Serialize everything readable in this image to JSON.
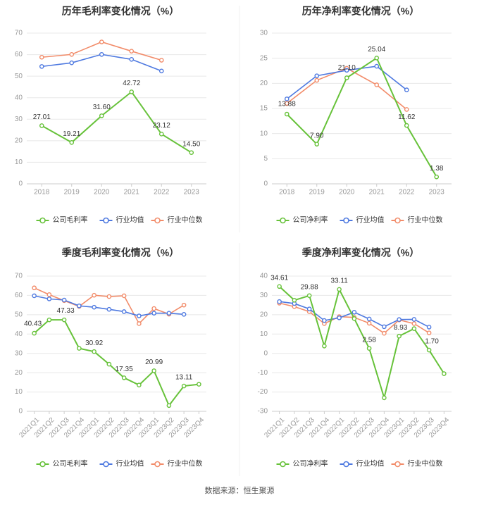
{
  "colors": {
    "company": "#67c23a",
    "industry_avg": "#4e79e0",
    "industry_median": "#f28c6a",
    "grid": "#e8e8e8",
    "axis_text": "#999999",
    "label_text": "#333333"
  },
  "legend": {
    "company_gross": "公司毛利率",
    "company_net": "公司净利率",
    "industry_avg": "行业均值",
    "industry_median": "行业中位数"
  },
  "footer": {
    "source": "数据来源：恒生聚源"
  },
  "chart_data": [
    {
      "id": "annual-gross",
      "type": "line",
      "title": "历年毛利率变化情况（%）",
      "categories": [
        "2018",
        "2019",
        "2020",
        "2021",
        "2022",
        "2023"
      ],
      "ylim": [
        0,
        70
      ],
      "yticks": [
        0,
        10,
        20,
        30,
        40,
        50,
        60,
        70
      ],
      "legend_company": "公司毛利率",
      "series": [
        {
          "key": "company",
          "name": "公司毛利率",
          "values": [
            27.01,
            19.21,
            31.6,
            42.72,
            23.12,
            14.5
          ],
          "labels": [
            "27.01",
            "19.21",
            "31.60",
            "42.72",
            "23.12",
            "14.50"
          ]
        },
        {
          "key": "industry_avg",
          "name": "行业均值",
          "values": [
            54.5,
            56.2,
            60.1,
            57.8,
            52.4,
            null
          ]
        },
        {
          "key": "industry_median",
          "name": "行业中位数",
          "values": [
            58.8,
            60.1,
            65.9,
            61.6,
            57.4,
            null
          ]
        }
      ]
    },
    {
      "id": "annual-net",
      "type": "line",
      "title": "历年净利率变化情况（%）",
      "categories": [
        "2018",
        "2019",
        "2020",
        "2021",
        "2022",
        "2023"
      ],
      "ylim": [
        0,
        30
      ],
      "yticks": [
        0,
        5,
        10,
        15,
        20,
        25,
        30
      ],
      "legend_company": "公司净利率",
      "series": [
        {
          "key": "company",
          "name": "公司净利率",
          "values": [
            13.88,
            7.9,
            21.1,
            25.04,
            11.62,
            1.38
          ],
          "labels": [
            "13.88",
            "7.90",
            "21.10",
            "25.04",
            "11.62",
            "1.38"
          ]
        },
        {
          "key": "industry_avg",
          "name": "行业均值",
          "values": [
            16.9,
            21.5,
            22.6,
            23.4,
            18.7,
            null
          ]
        },
        {
          "key": "industry_median",
          "name": "行业中位数",
          "values": [
            16.0,
            20.6,
            23.0,
            19.7,
            14.8,
            null
          ]
        }
      ]
    },
    {
      "id": "quarterly-gross",
      "type": "line",
      "title": "季度毛利率变化情况（%）",
      "categories": [
        "2021Q1",
        "2021Q2",
        "2021Q3",
        "2021Q4",
        "2022Q1",
        "2022Q2",
        "2022Q3",
        "2022Q4",
        "2023Q1",
        "2023Q2",
        "2023Q3",
        "2023Q4"
      ],
      "ylim": [
        0,
        70
      ],
      "yticks": [
        0,
        10,
        20,
        30,
        40,
        50,
        60,
        70
      ],
      "legend_company": "公司毛利率",
      "series": [
        {
          "key": "company",
          "name": "公司毛利率",
          "values": [
            40.43,
            47.33,
            47.33,
            32.6,
            30.92,
            24.4,
            17.35,
            13.6,
            20.99,
            3.0,
            13.11,
            14.0
          ],
          "labels": [
            "40.43",
            null,
            "47.33",
            null,
            "30.92",
            null,
            "17.35",
            null,
            "20.99",
            null,
            "13.11",
            null
          ]
        },
        {
          "key": "industry_avg",
          "name": "行业均值",
          "values": [
            59.8,
            58.2,
            57.6,
            54.6,
            53.9,
            52.8,
            51.6,
            49.4,
            50.8,
            50.8,
            50.2,
            null
          ]
        },
        {
          "key": "industry_median",
          "name": "行业中位数",
          "values": [
            63.9,
            60.4,
            57.3,
            54.3,
            60.1,
            59.4,
            59.8,
            45.4,
            53.2,
            50.3,
            55.0,
            null
          ]
        }
      ]
    },
    {
      "id": "quarterly-net",
      "type": "line",
      "title": "季度净利率变化情况（%）",
      "categories": [
        "2021Q1",
        "2021Q2",
        "2021Q3",
        "2021Q4",
        "2022Q1",
        "2022Q2",
        "2022Q3",
        "2022Q4",
        "2023Q1",
        "2023Q2",
        "2023Q3",
        "2023Q4"
      ],
      "ylim": [
        -30,
        40
      ],
      "yticks": [
        -30,
        -20,
        -10,
        0,
        10,
        20,
        30,
        40
      ],
      "legend_company": "公司净利率",
      "series": [
        {
          "key": "company",
          "name": "公司净利率",
          "values": [
            34.61,
            27.5,
            29.88,
            3.8,
            33.11,
            18.0,
            2.58,
            -23.0,
            8.93,
            12.8,
            1.7,
            -10.5
          ],
          "labels": [
            "34.61",
            null,
            "29.88",
            null,
            "33.11",
            null,
            "2.58",
            null,
            "8.93",
            null,
            "1.70",
            null
          ]
        },
        {
          "key": "industry_avg",
          "name": "行业均值",
          "values": [
            26.8,
            25.8,
            23.0,
            17.0,
            18.4,
            21.3,
            17.8,
            13.8,
            17.5,
            17.6,
            13.6,
            null
          ]
        },
        {
          "key": "industry_median",
          "name": "行业中位数",
          "values": [
            26.0,
            24.2,
            21.6,
            15.4,
            19.0,
            18.6,
            15.6,
            10.4,
            17.3,
            15.4,
            10.6,
            null
          ]
        }
      ]
    }
  ]
}
